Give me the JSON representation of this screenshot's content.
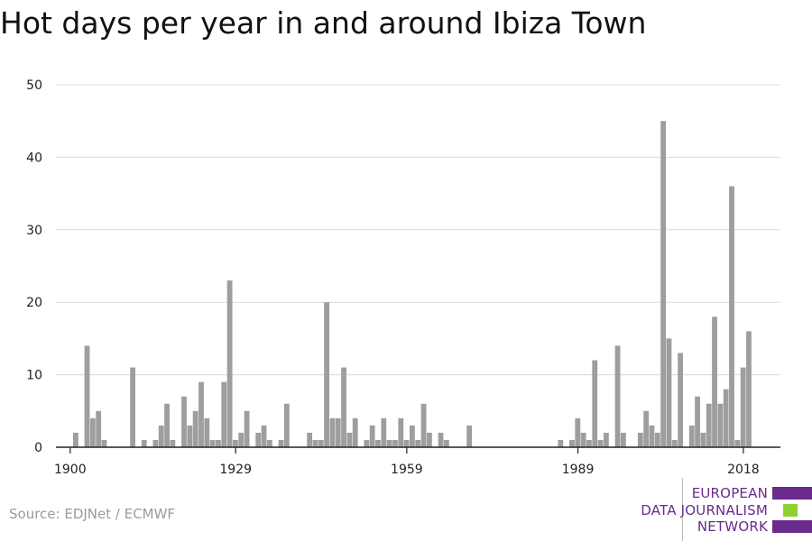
{
  "title": "Hot days per year in and around Ibiza Town",
  "source": "Source: EDJNet / ECMWF",
  "logo": {
    "lines": [
      "EUROPEAN",
      "DATA JOURNALISM",
      "NETWORK"
    ],
    "colors": [
      "#6a2b8c",
      "#8fd12e",
      "#6a2b8c"
    ]
  },
  "colors": {
    "bar": "#9e9e9e",
    "grid": "#d9d9d9",
    "axis": "#222222",
    "text": "#222222"
  },
  "chart_data": {
    "type": "bar",
    "title": "Hot days per year in and around Ibiza Town",
    "xlabel": "",
    "ylabel": "",
    "ylim": [
      0,
      50
    ],
    "xlim": [
      1897.5,
      2024.5
    ],
    "yticks": [
      0,
      10,
      20,
      30,
      40,
      50
    ],
    "xticks": [
      1900,
      1929,
      1959,
      1989,
      2018
    ],
    "grid": true,
    "x": [
      1901,
      1903,
      1904,
      1905,
      1906,
      1911,
      1913,
      1915,
      1916,
      1917,
      1918,
      1920,
      1921,
      1922,
      1923,
      1924,
      1925,
      1926,
      1927,
      1928,
      1929,
      1930,
      1931,
      1933,
      1934,
      1935,
      1937,
      1938,
      1942,
      1943,
      1944,
      1945,
      1946,
      1947,
      1948,
      1949,
      1950,
      1952,
      1953,
      1954,
      1955,
      1956,
      1957,
      1958,
      1959,
      1960,
      1961,
      1962,
      1963,
      1965,
      1966,
      1970,
      1986,
      1988,
      1989,
      1990,
      1991,
      1992,
      1993,
      1994,
      1996,
      1997,
      2000,
      2001,
      2002,
      2003,
      2004,
      2005,
      2006,
      2007,
      2009,
      2010,
      2011,
      2012,
      2013,
      2014,
      2015,
      2016,
      2017,
      2018,
      2019
    ],
    "values": [
      2,
      14,
      4,
      5,
      1,
      11,
      1,
      1,
      3,
      6,
      1,
      7,
      3,
      5,
      9,
      4,
      1,
      1,
      9,
      23,
      1,
      2,
      5,
      2,
      3,
      1,
      1,
      6,
      2,
      1,
      1,
      20,
      4,
      4,
      11,
      2,
      4,
      1,
      3,
      1,
      4,
      1,
      1,
      4,
      1,
      3,
      1,
      6,
      2,
      2,
      1,
      3,
      1,
      1,
      4,
      2,
      1,
      12,
      1,
      2,
      14,
      2,
      2,
      5,
      3,
      2,
      45,
      15,
      1,
      13,
      3,
      7,
      2,
      6,
      18,
      6,
      8,
      36,
      1,
      11,
      16
    ]
  }
}
